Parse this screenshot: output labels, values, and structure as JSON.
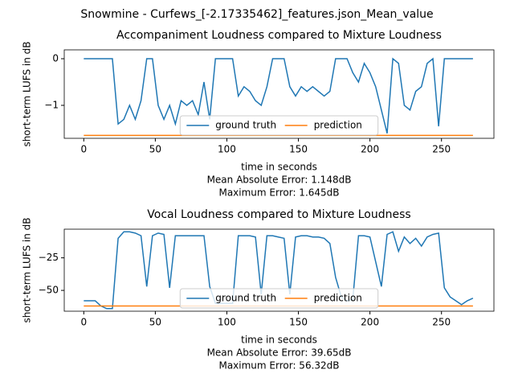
{
  "title": "Snowmine - Curfews_[-2.17335462]_features.json_Mean_value",
  "chart_data": [
    {
      "type": "line",
      "title": "Accompaniment Loudness compared to Mixture Loudness",
      "xlabel": "time in seconds",
      "ylabel": "short-term LUFS in dB",
      "annotations": [
        "Mean Absolute Error: 1.148dB",
        "Maximum Error: 1.645dB"
      ],
      "x": [
        0,
        4,
        8,
        12,
        16,
        20,
        24,
        28,
        32,
        36,
        40,
        44,
        48,
        52,
        56,
        60,
        64,
        68,
        72,
        76,
        80,
        84,
        88,
        92,
        96,
        100,
        104,
        108,
        112,
        116,
        120,
        124,
        128,
        132,
        136,
        140,
        144,
        148,
        152,
        156,
        160,
        164,
        168,
        172,
        176,
        180,
        184,
        188,
        192,
        196,
        200,
        204,
        208,
        212,
        216,
        220,
        224,
        228,
        232,
        236,
        240,
        244,
        248,
        252,
        256,
        260,
        264,
        268,
        272
      ],
      "series": [
        {
          "name": "ground truth",
          "color": "#1f77b4",
          "values": [
            0,
            0,
            0,
            0,
            0,
            0,
            -1.4,
            -1.3,
            -1.0,
            -1.3,
            -0.9,
            0,
            0,
            -1.0,
            -1.3,
            -1.0,
            -1.4,
            -0.9,
            -1.0,
            -0.9,
            -1.2,
            -0.5,
            -1.3,
            0,
            0,
            0,
            0,
            -0.8,
            -0.6,
            -0.7,
            -0.9,
            -1.0,
            -0.6,
            0,
            0,
            0,
            -0.6,
            -0.8,
            -0.6,
            -0.7,
            -0.6,
            -0.7,
            -0.8,
            -0.7,
            0,
            0,
            0,
            -0.3,
            -0.5,
            -0.1,
            -0.3,
            -0.6,
            -1.1,
            -1.6,
            0,
            -0.1,
            -1.0,
            -1.1,
            -0.7,
            -0.6,
            -0.1,
            0,
            -1.45,
            0,
            0,
            0,
            0,
            0,
            0
          ]
        },
        {
          "name": "prediction",
          "color": "#ff7f0e",
          "values": [
            -1.645,
            -1.645,
            -1.645,
            -1.645,
            -1.645,
            -1.645,
            -1.645,
            -1.645,
            -1.645,
            -1.645,
            -1.645,
            -1.645,
            -1.645,
            -1.645,
            -1.645,
            -1.645,
            -1.645,
            -1.645,
            -1.645,
            -1.645,
            -1.645,
            -1.645,
            -1.645,
            -1.645,
            -1.645,
            -1.645,
            -1.645,
            -1.645,
            -1.645,
            -1.645,
            -1.645,
            -1.645,
            -1.645,
            -1.645,
            -1.645,
            -1.645,
            -1.645,
            -1.645,
            -1.645,
            -1.645,
            -1.645,
            -1.645,
            -1.645,
            -1.645,
            -1.645,
            -1.645,
            -1.645,
            -1.645,
            -1.645,
            -1.645,
            -1.645,
            -1.645,
            -1.645,
            -1.645,
            -1.645,
            -1.645,
            -1.645,
            -1.645,
            -1.645,
            -1.645,
            -1.645,
            -1.645,
            -1.645,
            -1.645,
            -1.645,
            -1.645,
            -1.645,
            -1.645,
            -1.645
          ]
        }
      ],
      "xlim": [
        -13.65,
        286.65
      ],
      "xticks": [
        0,
        50,
        100,
        150,
        200,
        250
      ],
      "ylim": [
        -1.707,
        0.19
      ],
      "yticks": [
        {
          "value": -1,
          "label": "−1"
        },
        0
      ],
      "legend": "lower center"
    },
    {
      "type": "line",
      "title": "Vocal Loudness compared to Mixture Loudness",
      "xlabel": "time in seconds",
      "ylabel": "short-term LUFS in dB",
      "annotations": [
        "Mean Absolute Error: 39.65dB",
        "Maximum Error: 56.32dB"
      ],
      "x": [
        0,
        4,
        8,
        12,
        16,
        20,
        24,
        28,
        32,
        36,
        40,
        44,
        48,
        52,
        56,
        60,
        64,
        68,
        72,
        76,
        80,
        84,
        88,
        92,
        96,
        100,
        104,
        108,
        112,
        116,
        120,
        124,
        128,
        132,
        136,
        140,
        144,
        148,
        152,
        156,
        160,
        164,
        168,
        172,
        176,
        180,
        184,
        188,
        192,
        196,
        200,
        204,
        208,
        212,
        216,
        220,
        224,
        228,
        232,
        236,
        240,
        244,
        248,
        252,
        256,
        260,
        264,
        268,
        272
      ],
      "series": [
        {
          "name": "ground truth",
          "color": "#1f77b4",
          "values": [
            -58,
            -58,
            -58,
            -62,
            -64,
            -64,
            -10,
            -5,
            -5,
            -6,
            -8,
            -47,
            -8,
            -6,
            -7,
            -48,
            -8,
            -8,
            -8,
            -8,
            -8,
            -8,
            -47,
            -60,
            -60,
            -60,
            -60,
            -8,
            -8,
            -8,
            -9,
            -53,
            -8,
            -8,
            -9,
            -10,
            -53,
            -9,
            -8,
            -8,
            -9,
            -9,
            -10,
            -14,
            -40,
            -55,
            -58,
            -57,
            -8,
            -8,
            -9,
            -28,
            -47,
            -7,
            -5,
            -20,
            -9,
            -14,
            -10,
            -16,
            -9,
            -7,
            -6,
            -48,
            -55,
            -58,
            -61,
            -58,
            -56
          ]
        },
        {
          "name": "prediction",
          "color": "#ff7f0e",
          "values": [
            -62,
            -62,
            -62,
            -62,
            -62,
            -62,
            -62,
            -62,
            -62,
            -62,
            -62,
            -62,
            -62,
            -62,
            -62,
            -62,
            -62,
            -62,
            -62,
            -62,
            -62,
            -62,
            -62,
            -62,
            -62,
            -62,
            -62,
            -62,
            -62,
            -62,
            -62,
            -62,
            -62,
            -62,
            -62,
            -62,
            -62,
            -62,
            -62,
            -62,
            -62,
            -62,
            -62,
            -62,
            -62,
            -62,
            -62,
            -62,
            -62,
            -62,
            -62,
            -62,
            -62,
            -62,
            -62,
            -62,
            -62,
            -62,
            -62,
            -62,
            -62,
            -62,
            -62,
            -62,
            -62,
            -62,
            -62,
            -62,
            -62
          ]
        }
      ],
      "xlim": [
        -13.65,
        286.65
      ],
      "xticks": [
        0,
        50,
        100,
        150,
        200,
        250
      ],
      "ylim": [
        -66,
        -3
      ],
      "yticks": [
        {
          "value": -50,
          "label": "−50"
        },
        {
          "value": -25,
          "label": "−25"
        }
      ],
      "legend": "lower center"
    }
  ]
}
